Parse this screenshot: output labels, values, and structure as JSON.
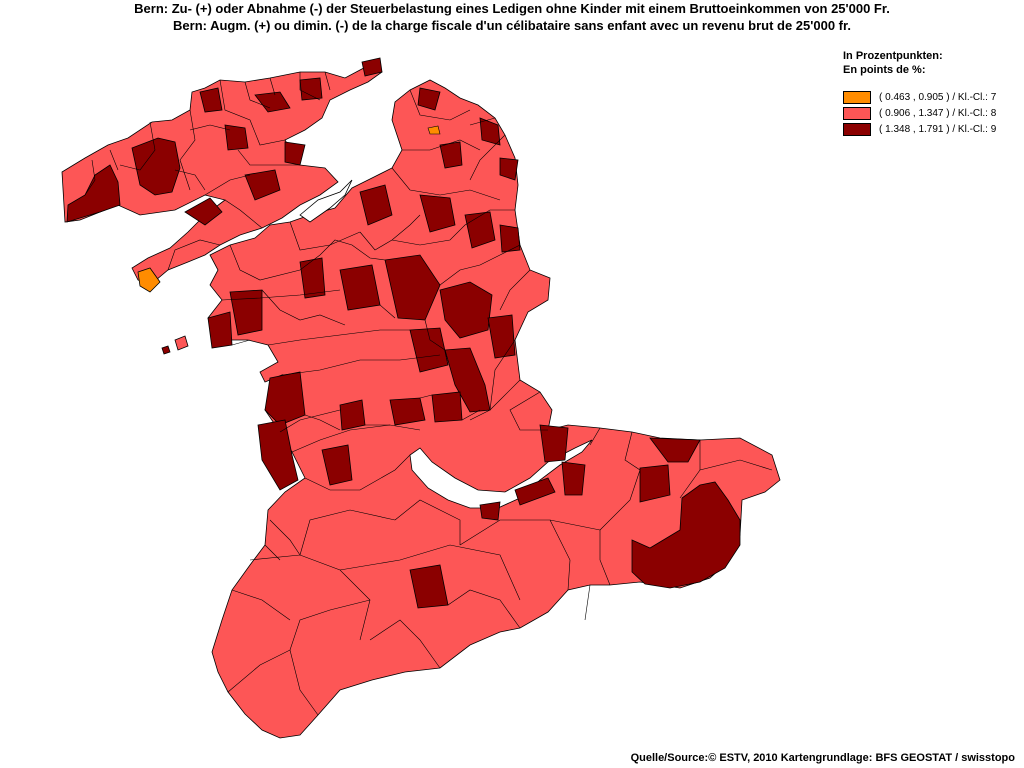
{
  "title": {
    "line1": "Bern: Zu- (+) oder Abnahme (-) der Steuerbelastung eines Ledigen ohne Kinder mit einem Bruttoeinkommen von 25'000 Fr.",
    "line2": "Bern: Augm. (+) ou dimin. (-) de la charge fiscale d'un célibataire sans enfant avec un revenu brut de 25'000 fr."
  },
  "legend": {
    "header1": "In Prozentpunkten:",
    "header2": "En points de %:",
    "classes": [
      {
        "label": "( 0.463 , 0.905 ) / Kl.-Cl.: 7",
        "color": "#ff8c00",
        "min": 0.463,
        "max": 0.905,
        "class": 7
      },
      {
        "label": "( 0.906 , 1.347 ) / Kl.-Cl.: 8",
        "color": "#fd5656",
        "min": 0.906,
        "max": 1.347,
        "class": 8
      },
      {
        "label": "( 1.348 , 1.791 ) / Kl.-Cl.: 9",
        "color": "#8b0000",
        "min": 1.348,
        "max": 1.791,
        "class": 9
      }
    ]
  },
  "source": "Quelle/Source:© ESTV, 2010 Kartengrundlage: BFS GEOSTAT / swisstopo"
}
